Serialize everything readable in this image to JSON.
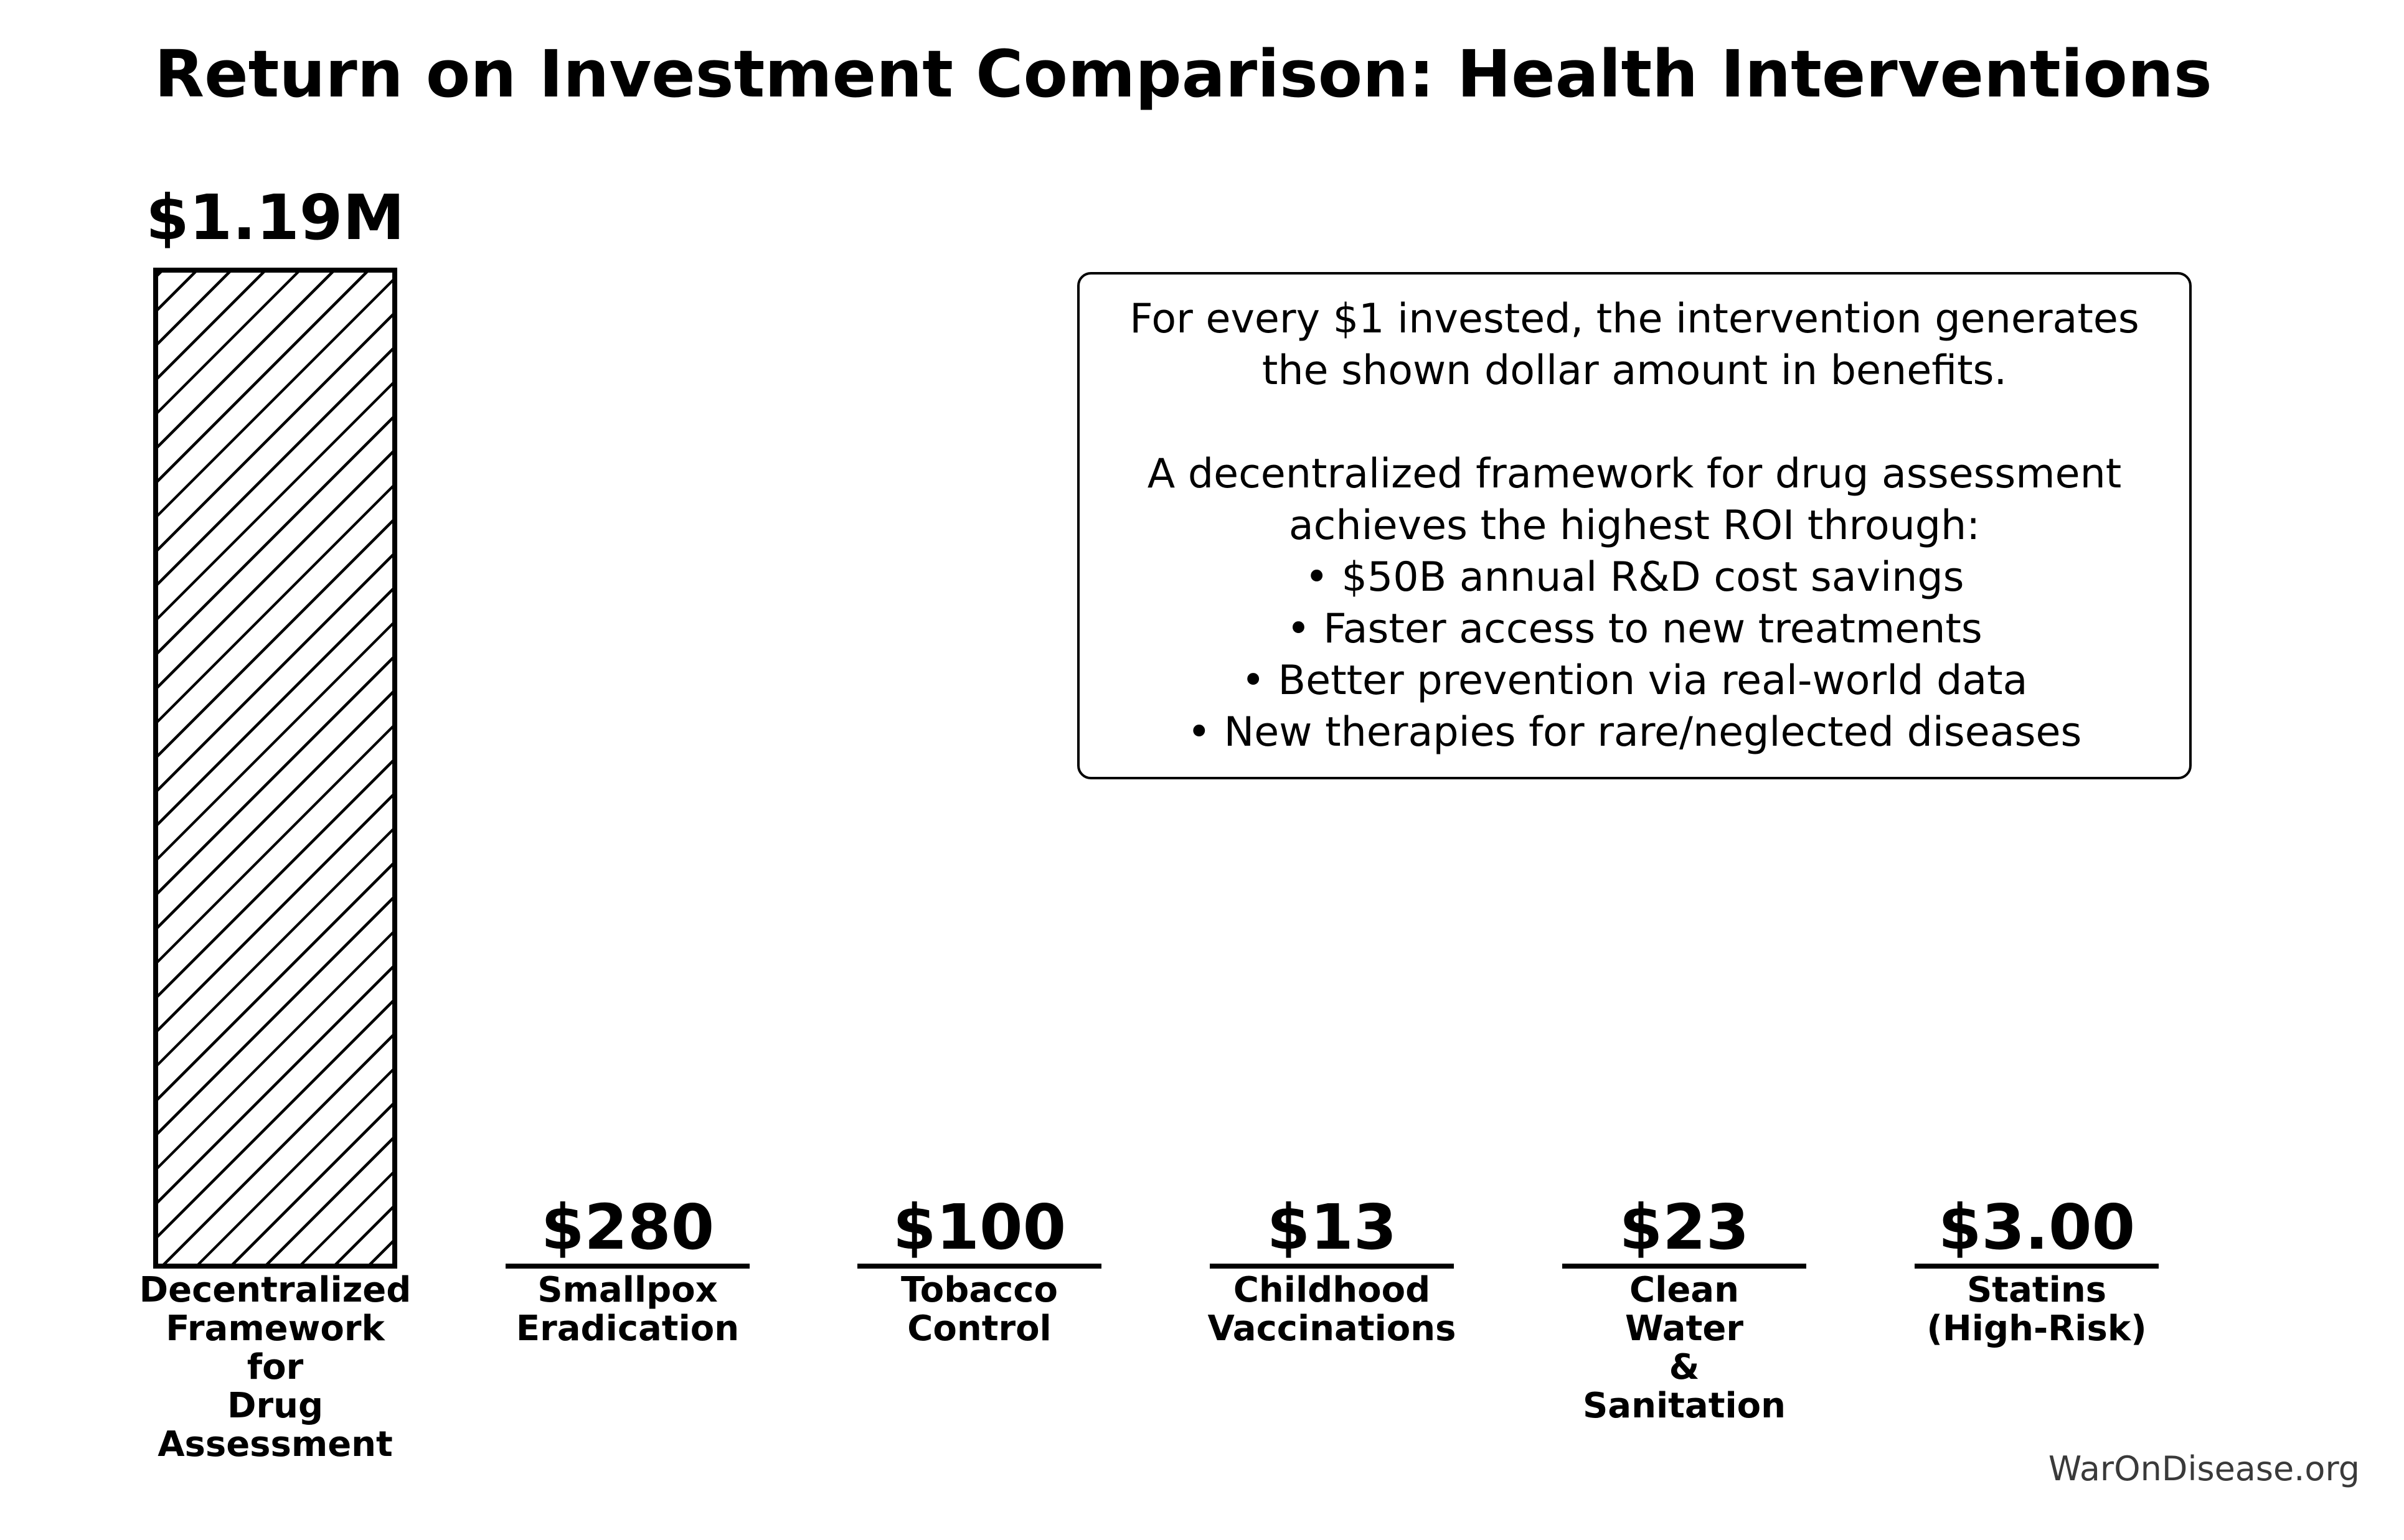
{
  "title": "Return on Investment Comparison: Health Interventions",
  "watermark": "WarOnDisease.org",
  "colors": {
    "foreground": "#000000",
    "background": "#ffffff",
    "watermark": "#3a3a3a"
  },
  "annotation": {
    "text": "For every $1 invested, the intervention generates\nthe shown dollar amount in benefits.\n\nA decentralized framework for drug assessment\nachieves the highest ROI through:\n• $50B annual R&D cost savings\n• Faster access to new treatments\n• Better prevention via real-world data\n• New therapies for rare/neglected diseases"
  },
  "chart_data": {
    "type": "bar",
    "title": "Return on Investment Comparison: Health Interventions",
    "xlabel": "",
    "ylabel": "",
    "ylim": [
      0,
      1250000
    ],
    "grid": false,
    "axes_visible": false,
    "legend": null,
    "categories": [
      "Decentralized Framework for Drug Assessment",
      "Smallpox Eradication",
      "Tobacco Control",
      "Childhood Vaccinations",
      "Clean Water & Sanitation",
      "Statins (High-Risk)"
    ],
    "values": [
      1190000,
      280,
      100,
      13,
      23,
      3
    ],
    "bars": [
      {
        "category_label": "Decentralized\nFramework\nfor\nDrug\nAssessment",
        "value": 1190000,
        "value_label": "$1.19M",
        "fill": "hatched-diagonal"
      },
      {
        "category_label": "Smallpox\nEradication",
        "value": 280,
        "value_label": "$280",
        "fill": "flat-line"
      },
      {
        "category_label": "Tobacco\nControl",
        "value": 100,
        "value_label": "$100",
        "fill": "flat-line"
      },
      {
        "category_label": "Childhood\nVaccinations",
        "value": 13,
        "value_label": "$13",
        "fill": "flat-line"
      },
      {
        "category_label": "Clean\nWater\n&\nSanitation",
        "value": 23,
        "value_label": "$23",
        "fill": "flat-line"
      },
      {
        "category_label": "Statins\n(High-Risk)",
        "value": 3,
        "value_label": "$3.00",
        "fill": "flat-line"
      }
    ]
  }
}
